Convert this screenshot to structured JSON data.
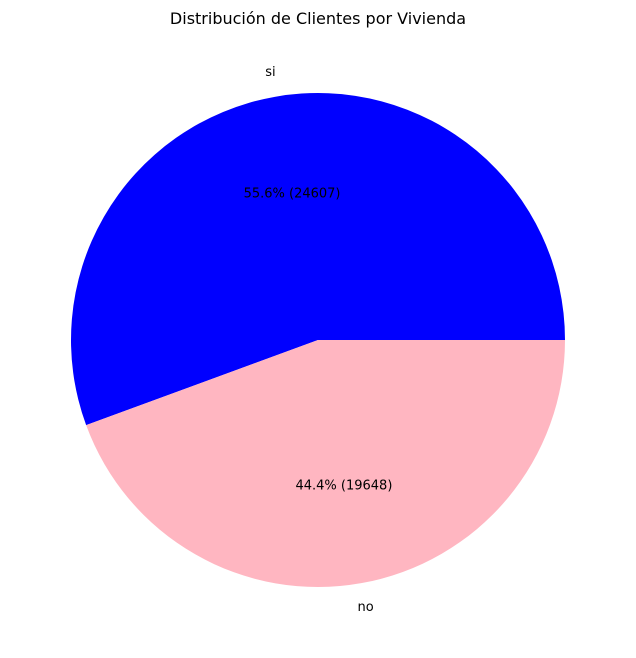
{
  "chart_data": {
    "type": "pie",
    "title": "Distribución de Clientes por Vivienda",
    "slices": [
      {
        "label": "si",
        "value": 24607,
        "percent_label": "55.6% (24607)",
        "color": "#0000ff"
      },
      {
        "label": "no",
        "value": 19648,
        "percent_label": "44.4% (19648)",
        "color": "#ffb6c1"
      }
    ],
    "start_angle_deg": 0,
    "direction": "counterclockwise"
  }
}
